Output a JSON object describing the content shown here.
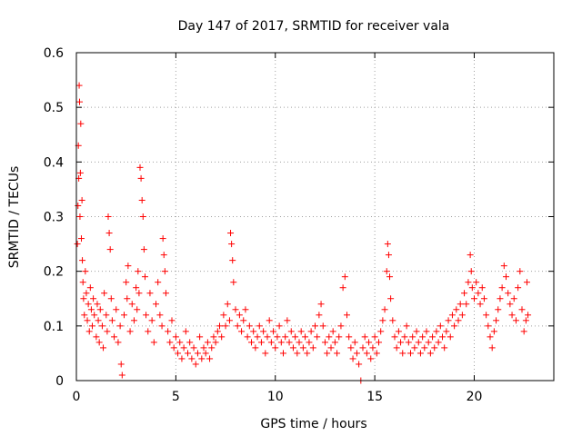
{
  "chart_data": {
    "type": "scatter",
    "title": "Day 147 of 2017, SRMTID for receiver vala",
    "xlabel": "GPS time / hours",
    "ylabel": "SRMTID / TECUs",
    "xlim": [
      0,
      24
    ],
    "ylim": [
      0,
      0.6
    ],
    "xticks": [
      0,
      5,
      10,
      15,
      20
    ],
    "xtick_labels": [
      "0",
      "5",
      "10",
      "15",
      "20"
    ],
    "yticks": [
      0,
      0.1,
      0.2,
      0.3,
      0.4,
      0.5,
      0.6
    ],
    "ytick_labels": [
      "0",
      "0.1",
      "0.2",
      "0.3",
      "0.4",
      "0.5",
      "0.6"
    ],
    "grid": true,
    "marker": "+",
    "color": "#ff0000",
    "series": [
      {
        "name": "SRMTID",
        "points": [
          [
            0.05,
            0.25
          ],
          [
            0.08,
            0.32
          ],
          [
            0.1,
            0.43
          ],
          [
            0.12,
            0.37
          ],
          [
            0.14,
            0.54
          ],
          [
            0.16,
            0.51
          ],
          [
            0.18,
            0.3
          ],
          [
            0.2,
            0.38
          ],
          [
            0.22,
            0.47
          ],
          [
            0.25,
            0.26
          ],
          [
            0.28,
            0.33
          ],
          [
            0.3,
            0.22
          ],
          [
            0.33,
            0.18
          ],
          [
            0.36,
            0.15
          ],
          [
            0.4,
            0.12
          ],
          [
            0.45,
            0.2
          ],
          [
            0.5,
            0.16
          ],
          [
            0.55,
            0.11
          ],
          [
            0.6,
            0.14
          ],
          [
            0.65,
            0.09
          ],
          [
            0.7,
            0.17
          ],
          [
            0.75,
            0.13
          ],
          [
            0.8,
            0.1
          ],
          [
            0.85,
            0.15
          ],
          [
            0.9,
            0.12
          ],
          [
            1.0,
            0.08
          ],
          [
            1.05,
            0.14
          ],
          [
            1.1,
            0.11
          ],
          [
            1.15,
            0.07
          ],
          [
            1.2,
            0.13
          ],
          [
            1.3,
            0.1
          ],
          [
            1.35,
            0.06
          ],
          [
            1.4,
            0.16
          ],
          [
            1.5,
            0.12
          ],
          [
            1.55,
            0.09
          ],
          [
            1.6,
            0.3
          ],
          [
            1.65,
            0.27
          ],
          [
            1.7,
            0.24
          ],
          [
            1.75,
            0.15
          ],
          [
            1.8,
            0.11
          ],
          [
            1.9,
            0.08
          ],
          [
            2.0,
            0.13
          ],
          [
            2.1,
            0.07
          ],
          [
            2.2,
            0.1
          ],
          [
            2.25,
            0.03
          ],
          [
            2.3,
            0.01
          ],
          [
            2.4,
            0.12
          ],
          [
            2.5,
            0.18
          ],
          [
            2.55,
            0.15
          ],
          [
            2.6,
            0.21
          ],
          [
            2.7,
            0.09
          ],
          [
            2.8,
            0.14
          ],
          [
            2.9,
            0.11
          ],
          [
            3.0,
            0.17
          ],
          [
            3.05,
            0.13
          ],
          [
            3.1,
            0.2
          ],
          [
            3.15,
            0.16
          ],
          [
            3.2,
            0.39
          ],
          [
            3.25,
            0.37
          ],
          [
            3.3,
            0.33
          ],
          [
            3.35,
            0.3
          ],
          [
            3.4,
            0.24
          ],
          [
            3.45,
            0.19
          ],
          [
            3.5,
            0.12
          ],
          [
            3.6,
            0.09
          ],
          [
            3.7,
            0.16
          ],
          [
            3.8,
            0.11
          ],
          [
            3.9,
            0.07
          ],
          [
            4.0,
            0.14
          ],
          [
            4.1,
            0.18
          ],
          [
            4.2,
            0.12
          ],
          [
            4.3,
            0.1
          ],
          [
            4.35,
            0.26
          ],
          [
            4.4,
            0.23
          ],
          [
            4.45,
            0.2
          ],
          [
            4.5,
            0.16
          ],
          [
            4.6,
            0.09
          ],
          [
            4.7,
            0.07
          ],
          [
            4.8,
            0.11
          ],
          [
            4.9,
            0.06
          ],
          [
            5.0,
            0.08
          ],
          [
            5.1,
            0.05
          ],
          [
            5.2,
            0.07
          ],
          [
            5.3,
            0.04
          ],
          [
            5.4,
            0.06
          ],
          [
            5.5,
            0.09
          ],
          [
            5.6,
            0.05
          ],
          [
            5.7,
            0.07
          ],
          [
            5.8,
            0.04
          ],
          [
            5.9,
            0.06
          ],
          [
            6.0,
            0.03
          ],
          [
            6.1,
            0.05
          ],
          [
            6.2,
            0.08
          ],
          [
            6.3,
            0.04
          ],
          [
            6.4,
            0.06
          ],
          [
            6.5,
            0.05
          ],
          [
            6.6,
            0.07
          ],
          [
            6.7,
            0.04
          ],
          [
            6.8,
            0.06
          ],
          [
            6.9,
            0.08
          ],
          [
            7.0,
            0.07
          ],
          [
            7.1,
            0.09
          ],
          [
            7.2,
            0.1
          ],
          [
            7.3,
            0.08
          ],
          [
            7.4,
            0.12
          ],
          [
            7.5,
            0.1
          ],
          [
            7.6,
            0.14
          ],
          [
            7.7,
            0.11
          ],
          [
            7.75,
            0.27
          ],
          [
            7.8,
            0.25
          ],
          [
            7.85,
            0.22
          ],
          [
            7.9,
            0.18
          ],
          [
            8.0,
            0.13
          ],
          [
            8.1,
            0.1
          ],
          [
            8.2,
            0.12
          ],
          [
            8.3,
            0.09
          ],
          [
            8.4,
            0.11
          ],
          [
            8.5,
            0.13
          ],
          [
            8.6,
            0.08
          ],
          [
            8.7,
            0.1
          ],
          [
            8.8,
            0.07
          ],
          [
            8.9,
            0.09
          ],
          [
            9.0,
            0.06
          ],
          [
            9.1,
            0.08
          ],
          [
            9.2,
            0.1
          ],
          [
            9.3,
            0.07
          ],
          [
            9.4,
            0.09
          ],
          [
            9.5,
            0.05
          ],
          [
            9.6,
            0.08
          ],
          [
            9.7,
            0.11
          ],
          [
            9.8,
            0.07
          ],
          [
            9.9,
            0.09
          ],
          [
            10.0,
            0.06
          ],
          [
            10.1,
            0.08
          ],
          [
            10.2,
            0.1
          ],
          [
            10.3,
            0.07
          ],
          [
            10.4,
            0.05
          ],
          [
            10.5,
            0.08
          ],
          [
            10.6,
            0.11
          ],
          [
            10.7,
            0.07
          ],
          [
            10.8,
            0.09
          ],
          [
            10.9,
            0.06
          ],
          [
            11.0,
            0.08
          ],
          [
            11.1,
            0.05
          ],
          [
            11.2,
            0.07
          ],
          [
            11.3,
            0.09
          ],
          [
            11.4,
            0.06
          ],
          [
            11.5,
            0.08
          ],
          [
            11.6,
            0.05
          ],
          [
            11.7,
            0.07
          ],
          [
            11.8,
            0.09
          ],
          [
            11.9,
            0.06
          ],
          [
            12.0,
            0.1
          ],
          [
            12.1,
            0.08
          ],
          [
            12.2,
            0.12
          ],
          [
            12.3,
            0.14
          ],
          [
            12.4,
            0.1
          ],
          [
            12.5,
            0.07
          ],
          [
            12.6,
            0.05
          ],
          [
            12.7,
            0.08
          ],
          [
            12.8,
            0.06
          ],
          [
            12.9,
            0.09
          ],
          [
            13.0,
            0.07
          ],
          [
            13.1,
            0.05
          ],
          [
            13.2,
            0.08
          ],
          [
            13.3,
            0.1
          ],
          [
            13.4,
            0.17
          ],
          [
            13.5,
            0.19
          ],
          [
            13.6,
            0.12
          ],
          [
            13.7,
            0.08
          ],
          [
            13.8,
            0.06
          ],
          [
            13.9,
            0.04
          ],
          [
            14.0,
            0.07
          ],
          [
            14.1,
            0.05
          ],
          [
            14.2,
            0.03
          ],
          [
            14.3,
            0.0
          ],
          [
            14.4,
            0.06
          ],
          [
            14.5,
            0.08
          ],
          [
            14.6,
            0.05
          ],
          [
            14.7,
            0.07
          ],
          [
            14.8,
            0.04
          ],
          [
            14.9,
            0.06
          ],
          [
            15.0,
            0.08
          ],
          [
            15.1,
            0.05
          ],
          [
            15.2,
            0.07
          ],
          [
            15.3,
            0.09
          ],
          [
            15.4,
            0.11
          ],
          [
            15.5,
            0.13
          ],
          [
            15.6,
            0.2
          ],
          [
            15.65,
            0.25
          ],
          [
            15.7,
            0.23
          ],
          [
            15.75,
            0.19
          ],
          [
            15.8,
            0.15
          ],
          [
            15.9,
            0.11
          ],
          [
            16.0,
            0.08
          ],
          [
            16.1,
            0.06
          ],
          [
            16.2,
            0.09
          ],
          [
            16.3,
            0.07
          ],
          [
            16.4,
            0.05
          ],
          [
            16.5,
            0.08
          ],
          [
            16.6,
            0.1
          ],
          [
            16.7,
            0.07
          ],
          [
            16.8,
            0.05
          ],
          [
            16.9,
            0.08
          ],
          [
            17.0,
            0.06
          ],
          [
            17.1,
            0.09
          ],
          [
            17.2,
            0.07
          ],
          [
            17.3,
            0.05
          ],
          [
            17.4,
            0.08
          ],
          [
            17.5,
            0.06
          ],
          [
            17.6,
            0.09
          ],
          [
            17.7,
            0.07
          ],
          [
            17.8,
            0.05
          ],
          [
            17.9,
            0.08
          ],
          [
            18.0,
            0.06
          ],
          [
            18.1,
            0.09
          ],
          [
            18.2,
            0.07
          ],
          [
            18.3,
            0.1
          ],
          [
            18.4,
            0.08
          ],
          [
            18.5,
            0.06
          ],
          [
            18.6,
            0.09
          ],
          [
            18.7,
            0.11
          ],
          [
            18.8,
            0.08
          ],
          [
            18.9,
            0.12
          ],
          [
            19.0,
            0.1
          ],
          [
            19.1,
            0.13
          ],
          [
            19.2,
            0.11
          ],
          [
            19.3,
            0.14
          ],
          [
            19.4,
            0.12
          ],
          [
            19.5,
            0.16
          ],
          [
            19.6,
            0.14
          ],
          [
            19.7,
            0.18
          ],
          [
            19.8,
            0.23
          ],
          [
            19.85,
            0.2
          ],
          [
            19.9,
            0.17
          ],
          [
            20.0,
            0.15
          ],
          [
            20.1,
            0.18
          ],
          [
            20.2,
            0.16
          ],
          [
            20.3,
            0.14
          ],
          [
            20.4,
            0.17
          ],
          [
            20.5,
            0.15
          ],
          [
            20.6,
            0.12
          ],
          [
            20.7,
            0.1
          ],
          [
            20.8,
            0.08
          ],
          [
            20.9,
            0.06
          ],
          [
            21.0,
            0.09
          ],
          [
            21.1,
            0.11
          ],
          [
            21.2,
            0.13
          ],
          [
            21.3,
            0.15
          ],
          [
            21.4,
            0.17
          ],
          [
            21.5,
            0.21
          ],
          [
            21.6,
            0.19
          ],
          [
            21.7,
            0.16
          ],
          [
            21.8,
            0.14
          ],
          [
            21.9,
            0.12
          ],
          [
            22.0,
            0.15
          ],
          [
            22.1,
            0.11
          ],
          [
            22.2,
            0.17
          ],
          [
            22.3,
            0.2
          ],
          [
            22.4,
            0.13
          ],
          [
            22.5,
            0.09
          ],
          [
            22.6,
            0.11
          ],
          [
            22.65,
            0.18
          ],
          [
            22.7,
            0.12
          ]
        ]
      }
    ]
  }
}
